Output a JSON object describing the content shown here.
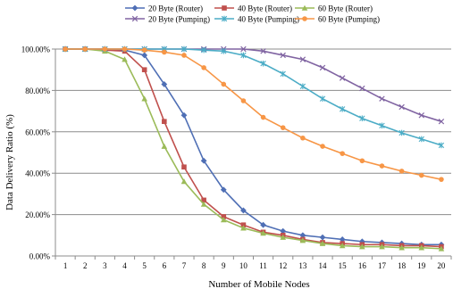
{
  "chart_data": {
    "type": "line",
    "title": "",
    "xlabel": "Number of Mobile Nodes",
    "ylabel": "Data Delivery Ratio (%)",
    "x": [
      1,
      2,
      3,
      4,
      5,
      6,
      7,
      8,
      9,
      10,
      11,
      12,
      13,
      14,
      15,
      16,
      17,
      18,
      19,
      20
    ],
    "xlim": [
      1,
      20
    ],
    "ylim": [
      0,
      100
    ],
    "yticks": [
      0,
      20,
      40,
      60,
      80,
      100
    ],
    "ytick_labels": [
      "0.00%",
      "20.00%",
      "40.00%",
      "60.00%",
      "80.00%",
      "100.00%"
    ],
    "grid": "horizontal",
    "legend_position": "top",
    "series": [
      {
        "name": "20 Byte (Router)",
        "color": "#4F6FB5",
        "marker": "diamond",
        "values": [
          100,
          100,
          100,
          99.5,
          97,
          83,
          68,
          46,
          32,
          22,
          15,
          12,
          10,
          9,
          8,
          7,
          6.5,
          6,
          5.5,
          5.5
        ]
      },
      {
        "name": "40 Byte (Router)",
        "color": "#C0504D",
        "marker": "square",
        "values": [
          100,
          100,
          99.5,
          99,
          90,
          65,
          43,
          27,
          19,
          15,
          11.5,
          10,
          8,
          6.5,
          6,
          5.5,
          5.5,
          5,
          5,
          4.5
        ]
      },
      {
        "name": "60 Byte (Router)",
        "color": "#9BBB59",
        "marker": "triangle",
        "values": [
          100,
          100,
          99,
          95,
          76,
          53,
          36,
          25,
          17.5,
          13.5,
          11,
          9,
          7.5,
          6,
          5,
          4.5,
          4.5,
          4,
          4,
          3.5
        ]
      },
      {
        "name": "20 Byte (Pumping)",
        "color": "#8064A2",
        "marker": "x",
        "values": [
          100,
          100,
          100,
          100,
          100,
          100,
          100,
          100,
          100,
          100,
          99,
          97,
          95,
          91,
          86,
          81,
          76,
          72,
          68,
          65
        ]
      },
      {
        "name": "40 Byte (Pumping)",
        "color": "#4BACC6",
        "marker": "star",
        "values": [
          100,
          100,
          100,
          100,
          100,
          100,
          100,
          99.5,
          99,
          97,
          93,
          88,
          82,
          76,
          71,
          66.5,
          63,
          59.5,
          56.5,
          53.5
        ]
      },
      {
        "name": "60 Byte (Pumping)",
        "color": "#F79646",
        "marker": "circle",
        "values": [
          100,
          100,
          100,
          100,
          99.5,
          98.5,
          97,
          91,
          83,
          75,
          67,
          62,
          57,
          53,
          49.5,
          46,
          43.5,
          41,
          39,
          37
        ]
      }
    ]
  }
}
